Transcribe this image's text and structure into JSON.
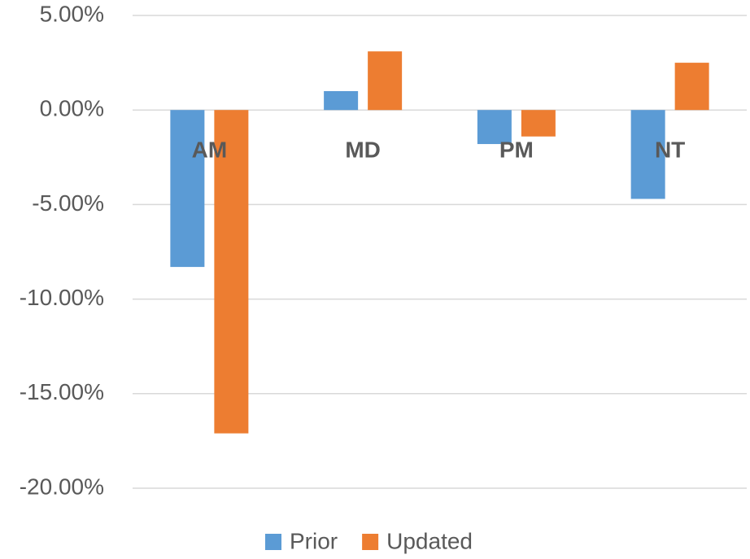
{
  "chart_data": {
    "type": "bar",
    "categories": [
      "AM",
      "MD",
      "PM",
      "NT"
    ],
    "series": [
      {
        "name": "Prior",
        "color": "#5b9bd5",
        "values": [
          -8.3,
          1.0,
          -1.8,
          -4.7
        ]
      },
      {
        "name": "Updated",
        "color": "#ed7d31",
        "values": [
          -17.1,
          3.1,
          -1.4,
          2.5
        ]
      }
    ],
    "ylim": [
      -20,
      5
    ],
    "yticks": [
      {
        "value": -20,
        "label": "-20.00%"
      },
      {
        "value": -15,
        "label": "-15.00%"
      },
      {
        "value": -10,
        "label": "-10.00%"
      },
      {
        "value": -5,
        "label": "-5.00%"
      },
      {
        "value": 0,
        "label": "0.00%"
      },
      {
        "value": 5,
        "label": "5.00%"
      }
    ],
    "grid": true,
    "legend": "bottom"
  }
}
